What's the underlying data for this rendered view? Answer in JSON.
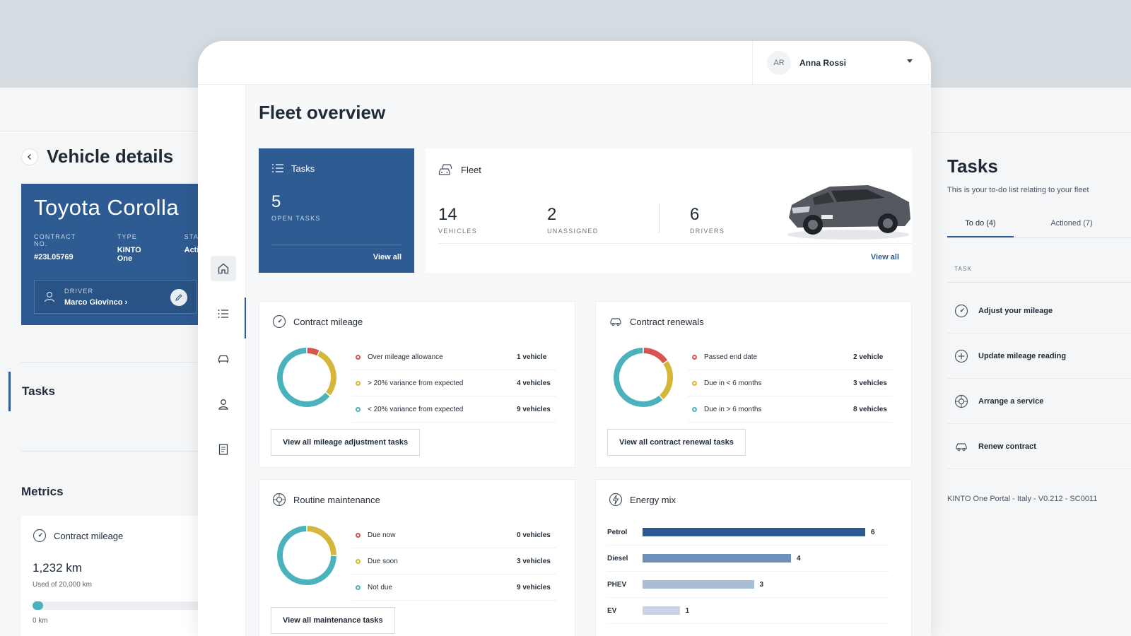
{
  "vehicle_details": {
    "title": "Vehicle details",
    "car_name": "Toyota Corolla",
    "meta": [
      {
        "label": "CONTRACT NO.",
        "value": "#23L05769"
      },
      {
        "label": "TYPE",
        "value": "KINTO One"
      },
      {
        "label": "STATUS",
        "value": "Active"
      }
    ],
    "driver_label": "DRIVER",
    "driver_name": "Marco Giovinco ›",
    "tasks_heading": "Tasks",
    "metrics_heading": "Metrics",
    "metric": {
      "title": "Contract mileage",
      "value": "1,232 km",
      "sub": "Used of 20,000 km",
      "progress_fraction": 0.0616,
      "zero_label": "0 km"
    }
  },
  "header": {
    "user_initials": "AR",
    "user_name": "Anna Rossi"
  },
  "nav": [
    {
      "name": "home-icon",
      "active": true
    },
    {
      "name": "list-icon",
      "active": false
    },
    {
      "name": "car-icon",
      "active": false
    },
    {
      "name": "user-icon",
      "active": false
    },
    {
      "name": "document-icon",
      "active": false
    }
  ],
  "main": {
    "title": "Fleet overview",
    "tasks_card": {
      "title": "Tasks",
      "count": "5",
      "count_label": "OPEN TASKS",
      "link": "View all"
    },
    "fleet_card": {
      "title": "Fleet",
      "stats": [
        {
          "value": "14",
          "label": "VEHICLES"
        },
        {
          "value": "2",
          "label": "UNASSIGNED"
        },
        {
          "value": "6",
          "label": "DRIVERS"
        }
      ],
      "link": "View all"
    },
    "contract_mileage": {
      "title": "Contract mileage",
      "rows": [
        {
          "label": "Over mileage allowance",
          "value": "1 vehicle",
          "color": "#d9534f"
        },
        {
          "label": "> 20% variance from expected",
          "value": "4 vehicles",
          "color": "#d4b73a"
        },
        {
          "label": "< 20% variance from expected",
          "value": "9 vehicles",
          "color": "#4ab1bd"
        }
      ],
      "segments": [
        1,
        4,
        9
      ],
      "button": "View all mileage adjustment tasks"
    },
    "contract_renewals": {
      "title": "Contract renewals",
      "rows": [
        {
          "label": "Passed end date",
          "value": "2 vehicle",
          "color": "#d9534f"
        },
        {
          "label": "Due in < 6 months",
          "value": "3 vehicles",
          "color": "#d4b73a"
        },
        {
          "label": "Due in > 6 months",
          "value": "8 vehicles",
          "color": "#4ab1bd"
        }
      ],
      "segments": [
        2,
        3,
        8
      ],
      "button": "View all contract renewal tasks"
    },
    "routine_maintenance": {
      "title": "Routine maintenance",
      "rows": [
        {
          "label": "Due now",
          "value": "0 vehicles",
          "color": "#d9534f"
        },
        {
          "label": "Due soon",
          "value": "3 vehicles",
          "color": "#d4b73a"
        },
        {
          "label": "Not due",
          "value": "9 vehicles",
          "color": "#4ab1bd"
        }
      ],
      "segments": [
        0,
        3,
        9
      ],
      "button": "View all maintenance tasks"
    },
    "energy_mix": {
      "title": "Energy mix",
      "max": 6,
      "rows": [
        {
          "label": "Petrol",
          "value": 6,
          "color": "#2e5b91"
        },
        {
          "label": "Diesel",
          "value": 4,
          "color": "#6e8fb8"
        },
        {
          "label": "PHEV",
          "value": 3,
          "color": "#a9bdd6"
        },
        {
          "label": "EV",
          "value": 1,
          "color": "#c8d4e3"
        }
      ]
    }
  },
  "tasks_panel": {
    "title": "Tasks",
    "subtitle": "This is your to-do list relating to your fleet",
    "tabs": [
      "To do (4)",
      "Actioned (7)"
    ],
    "column": "TASK",
    "items": [
      {
        "label": "Adjust your mileage",
        "icon": "speedometer-icon"
      },
      {
        "label": "Update mileage reading",
        "icon": "plus-circle-icon"
      },
      {
        "label": "Arrange a service",
        "icon": "service-icon"
      },
      {
        "label": "Renew contract",
        "icon": "car-renew-icon"
      }
    ],
    "footer": "KINTO One Portal - Italy - V0.212 - SC0011"
  }
}
